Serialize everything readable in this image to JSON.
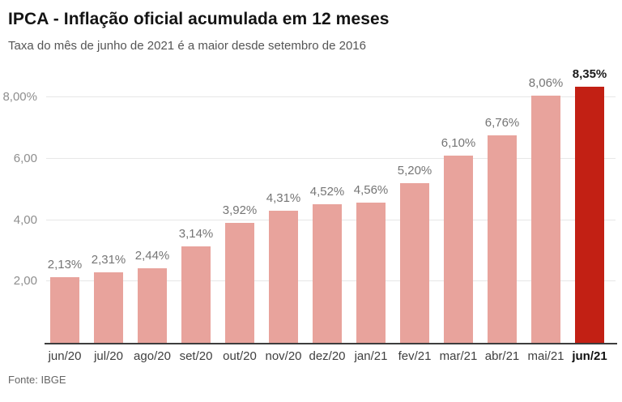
{
  "header": {
    "title": "IPCA - Inflação oficial acumulada em 12 meses",
    "subtitle": "Taxa do mês de junho de 2021 é a maior desde setembro de 2016"
  },
  "footer": {
    "source": "Fonte: IBGE"
  },
  "colors": {
    "bar": "#e8a39c",
    "bar_highlight": "#c22014",
    "value_label": "#757575",
    "value_label_highlight": "#1a1a1a",
    "gridline": "#e7e7e7",
    "axis_line": "#3d3d3d"
  },
  "chart_data": {
    "type": "bar",
    "title": "IPCA - Inflação oficial acumulada em 12 meses",
    "subtitle": "Taxa do mês de junho de 2021 é a maior desde setembro de 2016",
    "xlabel": "",
    "ylabel": "",
    "grid": true,
    "ylim": [
      0,
      8.53
    ],
    "categories": [
      "jun/20",
      "jul/20",
      "ago/20",
      "set/20",
      "out/20",
      "nov/20",
      "dez/20",
      "jan/21",
      "fev/21",
      "mar/21",
      "abr/21",
      "mai/21",
      "jun/21"
    ],
    "values": [
      2.13,
      2.31,
      2.44,
      3.14,
      3.92,
      4.31,
      4.52,
      4.56,
      5.2,
      6.1,
      6.76,
      8.06,
      8.35
    ],
    "value_labels": [
      "2,13%",
      "2,31%",
      "2,44%",
      "3,14%",
      "3,92%",
      "4,31%",
      "4,52%",
      "4,56%",
      "5,20%",
      "6,10%",
      "6,76%",
      "8,06%",
      "8,35%"
    ],
    "y_ticks": [
      {
        "value": 8,
        "label": "8,00%"
      },
      {
        "value": 6,
        "label": "6,00"
      },
      {
        "value": 4,
        "label": "4,00"
      },
      {
        "value": 2,
        "label": "2,00"
      }
    ],
    "highlight_index": 12,
    "source": "Fonte: IBGE"
  }
}
